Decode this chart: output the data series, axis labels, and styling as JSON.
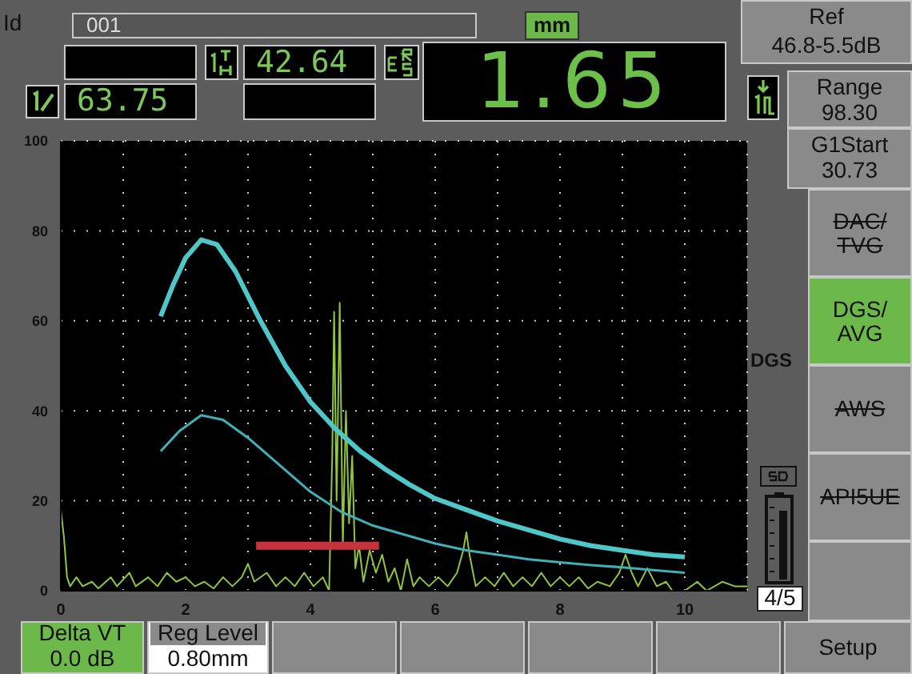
{
  "chart_data": {
    "type": "line",
    "annotations": [
      "Id",
      "001",
      "mm",
      "42.64",
      "63.75",
      "1.65",
      "Ref",
      "46.8-5.5dB",
      "Range",
      "98.30",
      "G1Start",
      "30.73",
      "DAC/\nTVG",
      "DGS/\nAVG",
      "AWS",
      "API5UE",
      "DGS",
      "4/5",
      "Delta VT",
      "0.0 dB",
      "Reg Level",
      "0.80mm",
      "Setup"
    ],
    "xlim": [
      0,
      11
    ],
    "xticks": [
      0,
      {
        "value": 1,
        "label": null
      },
      2,
      {
        "value": 3,
        "label": null
      },
      4,
      {
        "value": 5,
        "label": null
      },
      6,
      {
        "value": 7,
        "label": null
      },
      8,
      {
        "value": 9,
        "label": null
      },
      10,
      {
        "value": 11,
        "label": null
      }
    ],
    "ylim": [
      0,
      100
    ],
    "yticks": [
      0,
      20,
      40,
      60,
      80,
      100
    ],
    "grid": true,
    "series": [
      {
        "color": "#8ec63f",
        "x": [
          0,
          0.05,
          0.1,
          0.15,
          0.25,
          0.35,
          0.5,
          0.6,
          0.8,
          0.9,
          1.1,
          1.2,
          1.4,
          1.55,
          1.7,
          1.85,
          2.0,
          2.15,
          2.3,
          2.45,
          2.6,
          2.75,
          2.9,
          3.0,
          3.1,
          3.3,
          3.45,
          3.6,
          3.75,
          3.9,
          4.05,
          4.2,
          4.3,
          4.35,
          4.38,
          4.42,
          4.47,
          4.52,
          4.57,
          4.62,
          4.67,
          4.72,
          4.78,
          4.85,
          4.95,
          5.05,
          5.15,
          5.25,
          5.35,
          5.45,
          5.55,
          5.65,
          5.75,
          5.9,
          6.05,
          6.2,
          6.35,
          6.45,
          6.5,
          6.55,
          6.65,
          6.8,
          6.95,
          7.1,
          7.25,
          7.4,
          7.55,
          7.7,
          7.85,
          8.0,
          8.15,
          8.3,
          8.45,
          8.6,
          8.8,
          8.95,
          9.05,
          9.15,
          9.25,
          9.4,
          9.55,
          9.7,
          9.8,
          10.0,
          10.2,
          10.35,
          10.6,
          10.8,
          11
        ],
        "values": [
          18,
          12,
          3,
          1,
          3,
          1,
          2,
          0.5,
          3,
          1,
          4,
          1,
          3,
          1,
          4,
          2,
          3,
          1,
          2,
          0.5,
          3,
          1,
          3,
          6,
          2,
          4,
          1,
          3,
          1,
          4,
          1,
          3,
          0,
          30,
          62,
          20,
          64,
          10,
          40,
          15,
          30,
          5,
          10,
          2,
          9,
          4,
          8,
          2,
          5,
          0,
          7,
          1,
          3,
          1,
          3,
          1,
          4,
          9,
          13,
          8,
          1,
          3,
          1,
          4,
          1,
          3,
          1,
          4,
          1,
          3,
          1,
          3,
          0.5,
          2,
          1,
          4,
          8,
          4,
          1,
          5,
          1,
          2,
          0,
          0,
          2,
          0,
          2,
          1,
          1
        ]
      },
      {
        "color": "#4fc6c8",
        "x": [
          1.6,
          1.8,
          2.0,
          2.25,
          2.5,
          2.8,
          3.2,
          3.6,
          4.0,
          4.4,
          4.8,
          5.2,
          5.6,
          6.0,
          6.5,
          7.0,
          7.5,
          8.0,
          8.5,
          9.0,
          9.5,
          10.0
        ],
        "values": [
          61,
          68,
          74,
          78,
          77,
          71,
          60,
          50,
          42,
          36,
          31,
          27,
          23.5,
          20.5,
          18,
          15.5,
          13.5,
          11.5,
          10,
          9,
          8,
          7.5
        ]
      },
      {
        "color": "#3fb0b8",
        "x": [
          1.6,
          1.9,
          2.25,
          2.6,
          3.0,
          3.5,
          4.0,
          4.5,
          5.0,
          5.5,
          6.0,
          6.5,
          7.0,
          7.5,
          8.0,
          8.5,
          9.0,
          9.5,
          10.0
        ],
        "values": [
          31,
          35.5,
          39,
          38,
          34,
          28,
          22,
          17.5,
          14.5,
          12.5,
          10.5,
          9,
          8,
          7,
          6.3,
          5.7,
          5.2,
          4.6,
          4
        ]
      },
      {
        "color": "#c8323c",
        "x": [
          3.13,
          5.1
        ],
        "values": [
          10,
          10
        ]
      }
    ]
  }
}
